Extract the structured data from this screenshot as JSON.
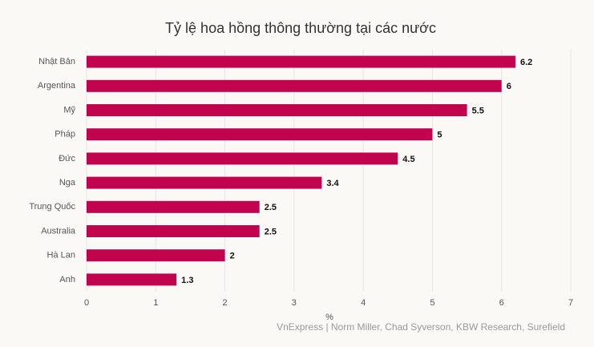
{
  "chart_data": {
    "type": "bar",
    "orientation": "horizontal",
    "title": "Tỷ lệ hoa hồng thông thường tại các nước",
    "categories": [
      "Nhật Bản",
      "Argentina",
      "Mỹ",
      "Pháp",
      "Đức",
      "Nga",
      "Trung Quốc",
      "Australia",
      "Hà Lan",
      "Anh"
    ],
    "values": [
      6.2,
      6,
      5.5,
      5,
      4.5,
      3.4,
      2.5,
      2.5,
      2,
      1.3
    ],
    "color": "#c2044f",
    "xlim": [
      0,
      7
    ],
    "xticks": [
      0,
      1,
      2,
      3,
      4,
      5,
      6,
      7
    ],
    "xlabel": "%",
    "grid": true,
    "data_labels": true,
    "source": "VnExpress | Norm Miller, Chad Syverson, KBW Research, Surefield"
  }
}
